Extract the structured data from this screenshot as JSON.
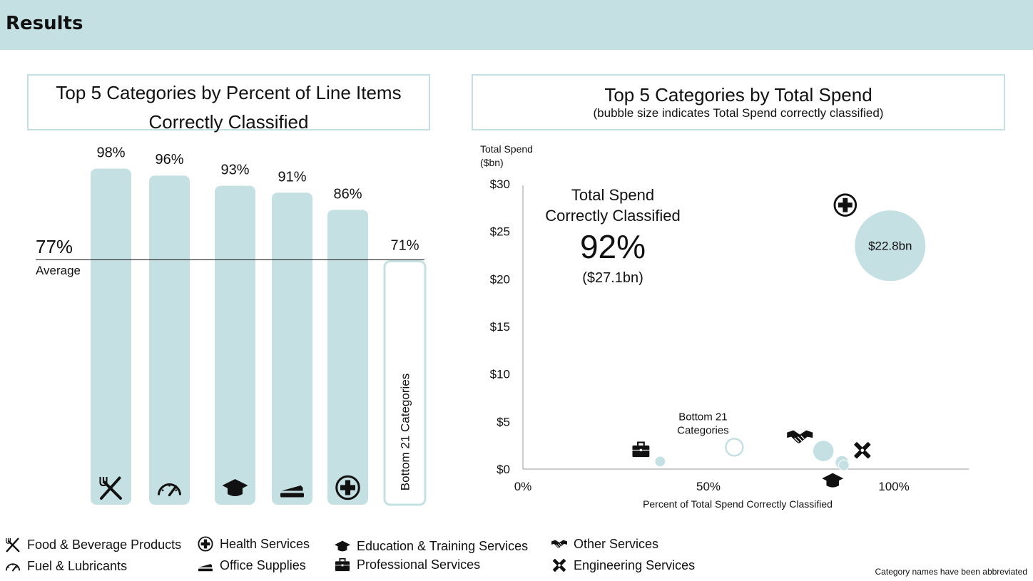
{
  "header": {
    "title": "Results"
  },
  "left_panel": {
    "title_line1": "Top 5 Categories by Percent of Line Items",
    "title_line2": "Correctly Classified"
  },
  "right_panel": {
    "title": "Top 5 Categories by Total Spend",
    "subtitle": "(bubble size indicates Total Spend correctly classified)"
  },
  "colors": {
    "bar": "#c5e0e3",
    "bubble": "#c5e0e3",
    "header": "#c5e0e3"
  },
  "chart_data": [
    {
      "type": "bar",
      "title": "Top 5 Categories by Percent of Line Items Correctly Classified",
      "categories": [
        "Food & Beverage Products",
        "Fuel & Lubricants",
        "Education & Training Services",
        "Office Supplies",
        "Health Services",
        "Bottom 21 Categories"
      ],
      "icons": [
        "fork-knife-icon",
        "gauge-icon",
        "graduation-cap-icon",
        "stapler-icon",
        "health-cross-icon",
        ""
      ],
      "values": [
        98,
        96,
        93,
        91,
        86,
        71
      ],
      "value_labels": [
        "98%",
        "96%",
        "93%",
        "91%",
        "86%",
        "71%"
      ],
      "outlined_bar_label": "Bottom 21 Categories",
      "average": 77,
      "average_value_label": "77%",
      "average_label": "Average",
      "ylim": [
        0,
        100
      ]
    },
    {
      "type": "scatter",
      "title": "Top 5 Categories by Total Spend",
      "subtitle": "(bubble size indicates Total Spend correctly classified)",
      "ylabel_line1": "Total Spend",
      "ylabel_line2": "($bn)",
      "xlabel": "Percent of Total Spend Correctly Classified",
      "xlim": [
        0,
        120
      ],
      "ylim": [
        0,
        30
      ],
      "x_ticks": [
        0,
        50,
        100
      ],
      "x_tick_labels": [
        "0%",
        "50%",
        "100%"
      ],
      "y_ticks": [
        0,
        5,
        10,
        15,
        20,
        25,
        30
      ],
      "y_tick_labels": [
        "$0",
        "$5",
        "$10",
        "$15",
        "$20",
        "$25",
        "$30"
      ],
      "points": [
        {
          "name": "Health Services",
          "x": 99,
          "y": 23.5,
          "bubble_label": "$22.8bn",
          "icon": "health-cross-icon",
          "style": "filled",
          "size": 22.8
        },
        {
          "name": "Professional Services",
          "x": 37,
          "y": 0.8,
          "icon": "briefcase-icon",
          "style": "filled",
          "size": 0.5
        },
        {
          "name": "Bottom 21 Categories",
          "x": 57,
          "y": 2.3,
          "annotation": "Bottom 21\nCategories",
          "style": "outline",
          "size": 2.3
        },
        {
          "name": "Other Services",
          "x": 81,
          "y": 1.9,
          "icon": "handshake-icon",
          "style": "filled",
          "size": 2.0
        },
        {
          "name": "Education & Training Services",
          "x": 86,
          "y": 0.7,
          "icon": "graduation-cap-icon",
          "style": "filled",
          "size": 0.8
        },
        {
          "name": "Engineering Services",
          "x": 86.5,
          "y": 0.4,
          "icon": "tools-icon",
          "style": "filled",
          "size": 0.5
        }
      ],
      "annotation": {
        "line1": "Total Spend",
        "line2": "Correctly Classified",
        "big_value": "92%",
        "sub_value": "($27.1bn)"
      }
    }
  ],
  "legend": [
    {
      "icon": "fork-knife-icon",
      "label": "Food & Beverage Products"
    },
    {
      "icon": "gauge-icon",
      "label": "Fuel & Lubricants"
    },
    {
      "icon": "health-cross-icon",
      "label": "Health Services"
    },
    {
      "icon": "stapler-icon",
      "label": "Office Supplies"
    },
    {
      "icon": "graduation-cap-icon",
      "label": "Education & Training Services"
    },
    {
      "icon": "briefcase-icon",
      "label": "Professional Services"
    },
    {
      "icon": "handshake-icon",
      "label": "Other Services"
    },
    {
      "icon": "tools-icon",
      "label": "Engineering Services"
    }
  ],
  "footnote": "Category names have been abbreviated"
}
